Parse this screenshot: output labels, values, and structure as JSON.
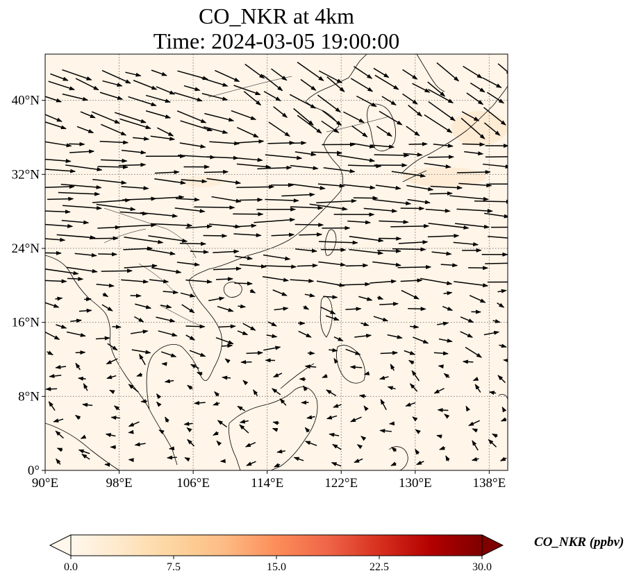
{
  "figure": {
    "title_line1": "CO_NKR at 4km",
    "title_line2": "Time: 2024-03-05 19:00:00"
  },
  "map": {
    "lon_range": [
      90,
      140
    ],
    "lat_range": [
      0,
      45
    ],
    "lon_ticks": [
      {
        "value": 90,
        "label": "90°E"
      },
      {
        "value": 98,
        "label": "98°E"
      },
      {
        "value": 106,
        "label": "106°E"
      },
      {
        "value": 114,
        "label": "114°E"
      },
      {
        "value": 122,
        "label": "122°E"
      },
      {
        "value": 130,
        "label": "130°E"
      },
      {
        "value": 138,
        "label": "138°E"
      }
    ],
    "lat_ticks": [
      {
        "value": 0,
        "label": "0°"
      },
      {
        "value": 8,
        "label": "8°N"
      },
      {
        "value": 16,
        "label": "16°N"
      },
      {
        "value": 24,
        "label": "24°N"
      },
      {
        "value": 32,
        "label": "32°N"
      },
      {
        "value": 40,
        "label": "40°N"
      }
    ],
    "gridlines": true,
    "background_color": "#fff5e8",
    "highlight_color": "#fde4c4",
    "coastline_color": "#000000",
    "arrow_color": "#000000"
  },
  "colorbar": {
    "label": "CO_NKR (ppbv)",
    "min": 0.0,
    "max": 30.0,
    "ticks": [
      {
        "value": 0.0,
        "label": "0.0"
      },
      {
        "value": 7.5,
        "label": "7.5"
      },
      {
        "value": 15.0,
        "label": "15.0"
      },
      {
        "value": 22.5,
        "label": "22.5"
      },
      {
        "value": 30.0,
        "label": "30.0"
      }
    ],
    "colormap": "OrRd",
    "extend": "both",
    "stops": [
      "#fff7ec",
      "#fee8c8",
      "#fdd49e",
      "#fdbb84",
      "#fc8d59",
      "#ef6548",
      "#d7301f",
      "#b30000",
      "#7f0000"
    ]
  }
}
